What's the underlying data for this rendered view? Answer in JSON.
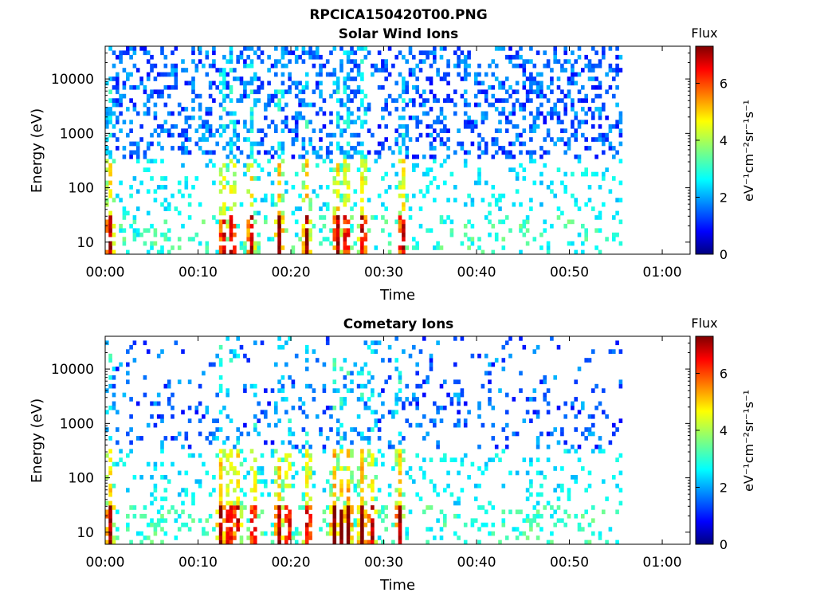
{
  "figure_title": "RPCICA150420T00.PNG",
  "chart_data": [
    {
      "type": "heatmap",
      "title": "Solar Wind Ions",
      "xlabel": "Time",
      "ylabel": "Energy (eV)",
      "x_ticks": [
        "00:00",
        "00:10",
        "00:20",
        "00:30",
        "00:40",
        "00:50",
        "01:00"
      ],
      "x_tick_minutes": [
        0,
        10,
        20,
        30,
        40,
        50,
        60
      ],
      "xlim_minutes": [
        0,
        63
      ],
      "data_end_minutes": 55.7,
      "y_scale": "log",
      "ylim": [
        6,
        40000
      ],
      "y_ticks": [
        "10",
        "100",
        "1000",
        "10000"
      ],
      "y_tick_values": [
        10,
        100,
        1000,
        10000
      ],
      "colorbar": {
        "label": "Flux",
        "unit": "eV⁻¹cm⁻²sr⁻¹s⁻¹",
        "range": [
          0,
          7.3
        ],
        "ticks": [
          "0",
          "2",
          "4",
          "6"
        ],
        "tick_values": [
          0,
          2,
          4,
          6
        ]
      },
      "colormap": "jet",
      "high_flux_bursts_minutes": [
        0.3,
        12.5,
        13.5,
        15.5,
        18.6,
        21.5,
        24.8,
        25.8,
        27.6,
        31.8
      ]
    },
    {
      "type": "heatmap",
      "title": "Cometary Ions",
      "xlabel": "Time",
      "ylabel": "Energy (eV)",
      "x_ticks": [
        "00:00",
        "00:10",
        "00:20",
        "00:30",
        "00:40",
        "00:50",
        "01:00"
      ],
      "x_tick_minutes": [
        0,
        10,
        20,
        30,
        40,
        50,
        60
      ],
      "xlim_minutes": [
        0,
        63
      ],
      "data_end_minutes": 55.7,
      "y_scale": "log",
      "ylim": [
        6,
        40000
      ],
      "y_ticks": [
        "10",
        "100",
        "1000",
        "10000"
      ],
      "y_tick_values": [
        10,
        100,
        1000,
        10000
      ],
      "colorbar": {
        "label": "Flux",
        "unit": "eV⁻¹cm⁻²sr⁻¹s⁻¹",
        "range": [
          0,
          7.3
        ],
        "ticks": [
          "0",
          "2",
          "4",
          "6"
        ],
        "tick_values": [
          0,
          2,
          4,
          6
        ]
      },
      "colormap": "jet",
      "high_flux_bursts_minutes": [
        0.3,
        12.3,
        13.2,
        14.0,
        15.8,
        18.5,
        19.5,
        21.7,
        24.5,
        25.3,
        26.0,
        27.5,
        28.5,
        31.5
      ]
    }
  ]
}
